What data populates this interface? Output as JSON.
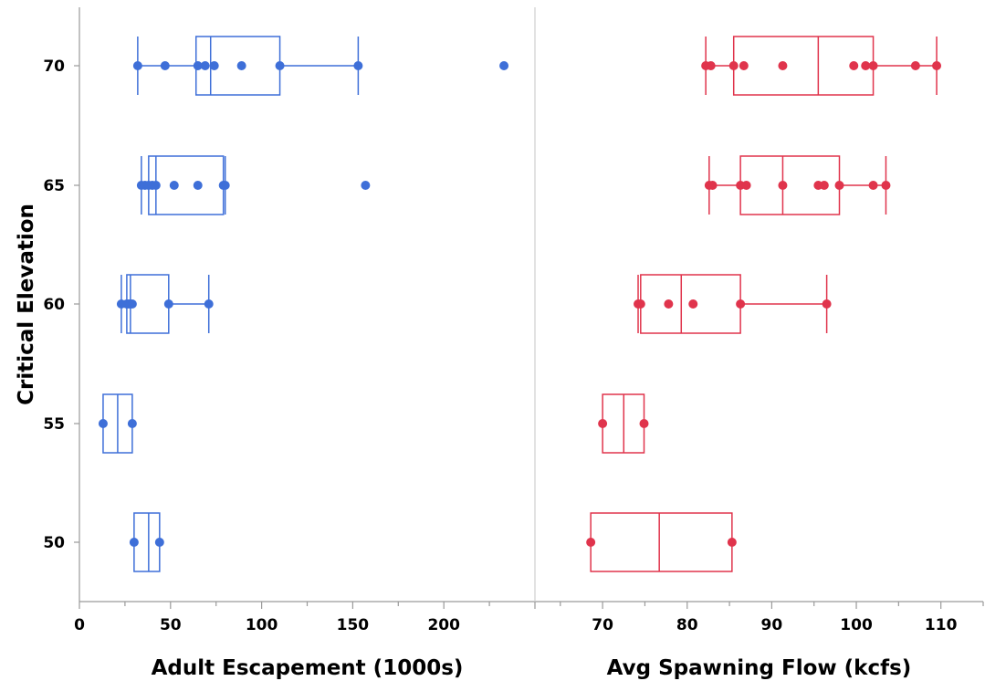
{
  "chart_data": {
    "type": "boxplot",
    "ylabel": "Critical Elevation",
    "categories": [
      "50",
      "55",
      "60",
      "65",
      "70"
    ],
    "panels": [
      {
        "xlabel": "Adult Escapement (1000s)",
        "color": "#3E6FD8",
        "xlim": [
          0,
          250
        ],
        "xticks": [
          "0",
          "50",
          "100",
          "150",
          "200"
        ],
        "groups": [
          {
            "elevation": "70",
            "box": {
              "min": 32,
              "q1": 64,
              "median": 72,
              "q3": 110,
              "max": 153
            },
            "points": [
              32,
              47,
              65,
              69,
              74,
              89,
              110,
              153,
              233
            ]
          },
          {
            "elevation": "65",
            "box": {
              "min": 34,
              "q1": 38,
              "median": 42,
              "q3": 79,
              "max": 80
            },
            "points": [
              34,
              36,
              38,
              40,
              42,
              52,
              65,
              79,
              80,
              157
            ]
          },
          {
            "elevation": "60",
            "box": {
              "min": 23,
              "q1": 26,
              "median": 28,
              "q3": 49,
              "max": 71
            },
            "points": [
              23,
              26,
              27,
              28,
              29,
              49,
              71
            ]
          },
          {
            "elevation": "55",
            "box": {
              "min": 13,
              "q1": 13,
              "median": 21,
              "q3": 29,
              "max": 29
            },
            "points": [
              13,
              29
            ]
          },
          {
            "elevation": "50",
            "box": {
              "min": 30,
              "q1": 30,
              "median": 38,
              "q3": 44,
              "max": 44
            },
            "points": [
              30,
              44
            ]
          }
        ]
      },
      {
        "xlabel": "Avg Spawning Flow (kcfs)",
        "color": "#E0344C",
        "xlim": [
          62,
          115
        ],
        "xticks": [
          "70",
          "80",
          "90",
          "100",
          "110"
        ],
        "groups": [
          {
            "elevation": "70",
            "box": {
              "min": 82.2,
              "q1": 85.5,
              "median": 95.5,
              "q3": 102,
              "max": 109.5
            },
            "points": [
              82.2,
              82.8,
              85.5,
              86.7,
              91.3,
              99.7,
              101.1,
              102,
              107,
              109.5
            ]
          },
          {
            "elevation": "65",
            "box": {
              "min": 82.6,
              "q1": 86.3,
              "median": 91.3,
              "q3": 98,
              "max": 103.5
            },
            "points": [
              82.6,
              83,
              86.3,
              87,
              91.3,
              95.5,
              96.2,
              98,
              102,
              103.5
            ]
          },
          {
            "elevation": "60",
            "box": {
              "min": 74.2,
              "q1": 74.5,
              "median": 79.3,
              "q3": 86.3,
              "max": 96.5
            },
            "points": [
              74.2,
              74.5,
              77.8,
              80.7,
              86.3,
              96.5
            ]
          },
          {
            "elevation": "55",
            "box": {
              "min": 70,
              "q1": 70,
              "median": 72.5,
              "q3": 74.9,
              "max": 74.9
            },
            "points": [
              70,
              74.9
            ]
          },
          {
            "elevation": "50",
            "box": {
              "min": 68.6,
              "q1": 68.6,
              "median": 76.7,
              "q3": 85.3,
              "max": 85.3
            },
            "points": [
              68.6,
              85.3
            ]
          }
        ]
      }
    ]
  }
}
